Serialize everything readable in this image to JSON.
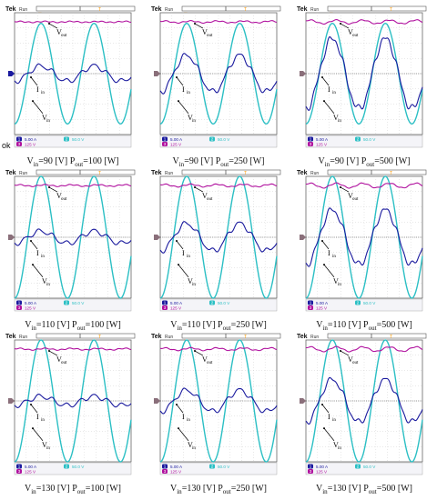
{
  "page": {
    "stray_label": "ok"
  },
  "scope": {
    "brand": "Tek",
    "status": "Run",
    "trigger_glyph": "T",
    "ch1_marker": "1",
    "ch2_marker": "2",
    "ch3_marker": "3",
    "readout": {
      "ch1": "5.00 A",
      "ch2": "50.0 V",
      "ch3": "125 V"
    },
    "colors": {
      "ch1_iin": "#1a1a9e",
      "ch2_vin": "#2bbfc4",
      "ch3_vout": "#b0109e",
      "grid": "#c8c8c8",
      "trigger": "#ff9900"
    }
  },
  "chart_data": [
    {
      "type": "line",
      "caption": {
        "vin": "90",
        "pout": "100"
      },
      "labels": {
        "vout": "V",
        "vout_sub": "out",
        "iin": "I",
        "iin_sub": "in",
        "vin": "V",
        "vin_sub": "in"
      },
      "series": [
        {
          "name": "Vout",
          "amplitude": 0.03
        },
        {
          "name": "Iin",
          "amplitude": 0.5
        },
        {
          "name": "Vin",
          "amplitude": 3.3
        }
      ]
    },
    {
      "type": "line",
      "caption": {
        "vin": "90",
        "pout": "250"
      },
      "labels": {
        "vout": "V",
        "vout_sub": "out",
        "iin": "I",
        "iin_sub": "in",
        "vin": "V",
        "vin_sub": "in"
      },
      "series": [
        {
          "name": "Vout",
          "amplitude": 0.06
        },
        {
          "name": "Iin",
          "amplitude": 1.2
        },
        {
          "name": "Vin",
          "amplitude": 3.3
        }
      ]
    },
    {
      "type": "line",
      "caption": {
        "vin": "90",
        "pout": "500"
      },
      "labels": {
        "vout": "V",
        "vout_sub": "out",
        "iin": "I",
        "iin_sub": "in",
        "vin": "V",
        "vin_sub": "in"
      },
      "series": [
        {
          "name": "Vout",
          "amplitude": 0.12
        },
        {
          "name": "Iin",
          "amplitude": 2.3
        },
        {
          "name": "Vin",
          "amplitude": 3.3
        }
      ]
    },
    {
      "type": "line",
      "caption": {
        "vin": "110",
        "pout": "100"
      },
      "labels": {
        "vout": "V",
        "vout_sub": "out",
        "iin": "I",
        "iin_sub": "in",
        "vin": "V",
        "vin_sub": "in"
      },
      "series": [
        {
          "name": "Vout",
          "amplitude": 0.05
        },
        {
          "name": "Iin",
          "amplitude": 0.4
        },
        {
          "name": "Vin",
          "amplitude": 4.0
        }
      ]
    },
    {
      "type": "line",
      "caption": {
        "vin": "110",
        "pout": "250"
      },
      "labels": {
        "vout": "V",
        "vout_sub": "out",
        "iin": "I",
        "iin_sub": "in",
        "vin": "V",
        "vin_sub": "in"
      },
      "series": [
        {
          "name": "Vout",
          "amplitude": 0.08
        },
        {
          "name": "Iin",
          "amplitude": 0.9
        },
        {
          "name": "Vin",
          "amplitude": 4.0
        }
      ]
    },
    {
      "type": "line",
      "caption": {
        "vin": "110",
        "pout": "500"
      },
      "labels": {
        "vout": "V",
        "vout_sub": "out",
        "iin": "I",
        "iin_sub": "in",
        "vin": "V",
        "vin_sub": "in"
      },
      "series": [
        {
          "name": "Vout",
          "amplitude": 0.15
        },
        {
          "name": "Iin",
          "amplitude": 1.8
        },
        {
          "name": "Vin",
          "amplitude": 4.0
        }
      ]
    },
    {
      "type": "line",
      "caption": {
        "vin": "130",
        "pout": "100"
      },
      "labels": {
        "vout": "V",
        "vout_sub": "out",
        "iin": "I",
        "iin_sub": "in",
        "vin": "V",
        "vin_sub": "in"
      },
      "series": [
        {
          "name": "Vout",
          "amplitude": 0.05
        },
        {
          "name": "Iin",
          "amplitude": 0.3
        },
        {
          "name": "Vin",
          "amplitude": 4.0
        }
      ]
    },
    {
      "type": "line",
      "caption": {
        "vin": "130",
        "pout": "250"
      },
      "labels": {
        "vout": "V",
        "vout_sub": "out",
        "iin": "I",
        "iin_sub": "in",
        "vin": "V",
        "vin_sub": "in"
      },
      "series": [
        {
          "name": "Vout",
          "amplitude": 0.08
        },
        {
          "name": "Iin",
          "amplitude": 0.7
        },
        {
          "name": "Vin",
          "amplitude": 4.0
        }
      ]
    },
    {
      "type": "line",
      "caption": {
        "vin": "130",
        "pout": "500"
      },
      "labels": {
        "vout": "V",
        "vout_sub": "out",
        "iin": "I",
        "iin_sub": "in",
        "vin": "V",
        "vin_sub": "in"
      },
      "series": [
        {
          "name": "Vout",
          "amplitude": 0.15
        },
        {
          "name": "Iin",
          "amplitude": 1.4
        },
        {
          "name": "Vin",
          "amplitude": 4.0
        }
      ]
    }
  ]
}
